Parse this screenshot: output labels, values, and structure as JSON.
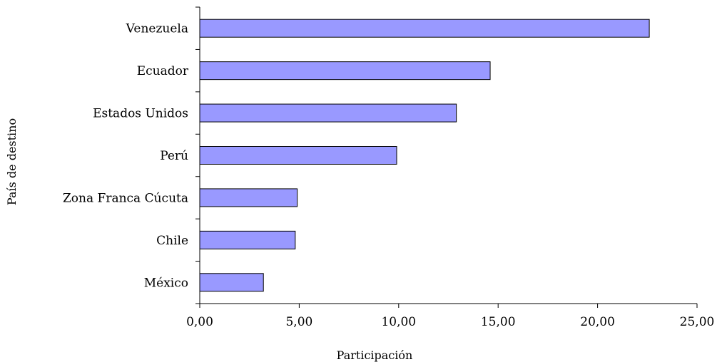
{
  "chart_data": {
    "type": "bar",
    "orientation": "horizontal",
    "categories": [
      "Venezuela",
      "Ecuador",
      "Estados Unidos",
      "Perú",
      "Zona Franca Cúcuta",
      "Chile",
      "México"
    ],
    "values": [
      22.6,
      14.6,
      12.9,
      9.9,
      4.9,
      4.8,
      3.2
    ],
    "xlabel": "Participación",
    "ylabel": "País de destino",
    "xlim": [
      0,
      25
    ],
    "x_ticks": [
      "0,00",
      "5,00",
      "10,00",
      "15,00",
      "20,00",
      "25,00"
    ],
    "grid": false,
    "legend": "none",
    "bar_color": "#9999ff",
    "bar_border": "#000000"
  }
}
